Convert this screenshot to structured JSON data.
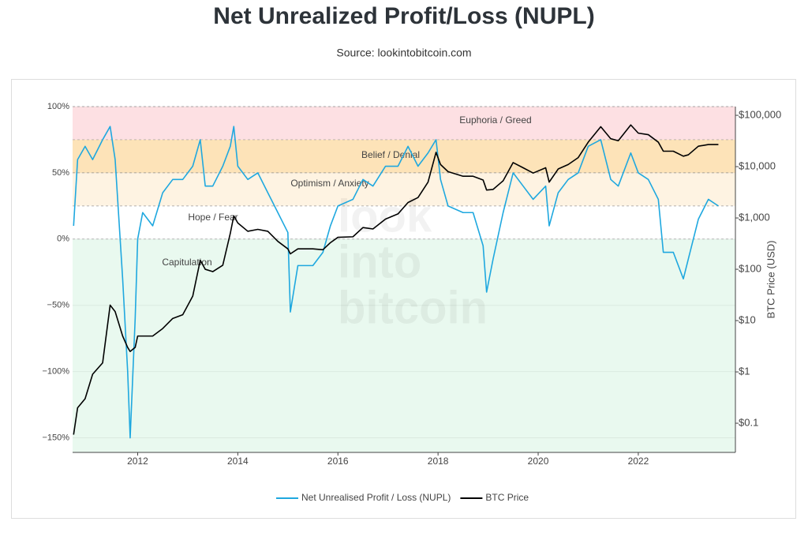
{
  "chart_data": {
    "type": "line",
    "title": "Net Unrealized Profit/Loss (NUPL)",
    "subtitle": "Source: lookintobitcoin.com",
    "y2_label": "BTC Price (USD)",
    "watermark": [
      "look",
      "into",
      "bitcoin"
    ],
    "xlim": [
      2010.7,
      2023.94
    ],
    "xticks": [
      2012,
      2014,
      2016,
      2018,
      2020,
      2022
    ],
    "ylim": [
      -161,
      100
    ],
    "yticks": [
      {
        "value": 100,
        "label": "100%"
      },
      {
        "value": 50,
        "label": "50%"
      },
      {
        "value": 0,
        "label": "0%"
      },
      {
        "value": -50,
        "label": "−50%"
      },
      {
        "value": -100,
        "label": "−100%"
      },
      {
        "value": -150,
        "label": "−150%"
      }
    ],
    "y2lim": [
      0.027,
      148000
    ],
    "y2_log": true,
    "y2ticks": [
      {
        "value": 100000,
        "label": "$100,000"
      },
      {
        "value": 10000,
        "label": "$10,000"
      },
      {
        "value": 1000,
        "label": "$1,000"
      },
      {
        "value": 100,
        "label": "$100"
      },
      {
        "value": 10,
        "label": "$10"
      },
      {
        "value": 1,
        "label": "$1"
      },
      {
        "value": 0.1,
        "label": "$0.1"
      }
    ],
    "grid": true,
    "zones": [
      {
        "name": "Euphoria / Greed",
        "range": [
          75,
          100
        ],
        "color": "#fde0e3"
      },
      {
        "name": "Belief / Denial",
        "range": [
          50,
          75
        ],
        "color": "#fde3b8"
      },
      {
        "name": "Optimism / Anxiety",
        "range": [
          25,
          50
        ],
        "color": "#fef3e2"
      },
      {
        "name": "Hope / Fear",
        "range": [
          0,
          25
        ],
        "color": "#ffffff"
      },
      {
        "name": "Capitulation",
        "range": [
          -161,
          0
        ],
        "color": "#e9f9ef"
      }
    ],
    "x": [
      2010.72,
      2010.8,
      2010.95,
      2011.1,
      2011.3,
      2011.45,
      2011.55,
      2011.7,
      2011.8,
      2011.85,
      2011.95,
      2012.0,
      2012.1,
      2012.3,
      2012.5,
      2012.7,
      2012.9,
      2013.1,
      2013.25,
      2013.35,
      2013.5,
      2013.7,
      2013.85,
      2013.92,
      2014.0,
      2014.2,
      2014.4,
      2014.6,
      2014.8,
      2015.0,
      2015.05,
      2015.2,
      2015.5,
      2015.7,
      2015.85,
      2016.0,
      2016.3,
      2016.5,
      2016.7,
      2016.95,
      2017.2,
      2017.4,
      2017.6,
      2017.8,
      2017.96,
      2018.05,
      2018.2,
      2018.5,
      2018.7,
      2018.9,
      2018.97,
      2019.1,
      2019.3,
      2019.5,
      2019.7,
      2019.9,
      2020.15,
      2020.22,
      2020.4,
      2020.6,
      2020.8,
      2021.0,
      2021.25,
      2021.45,
      2021.6,
      2021.85,
      2022.0,
      2022.2,
      2022.4,
      2022.5,
      2022.7,
      2022.9,
      2023.0,
      2023.2,
      2023.4,
      2023.6
    ],
    "series": [
      {
        "name": "Net Unrealised Profit / Loss (NUPL)",
        "color": "#1fa8df",
        "values": [
          10,
          60,
          70,
          60,
          75,
          85,
          60,
          -30,
          -100,
          -150,
          -60,
          0,
          20,
          10,
          35,
          45,
          45,
          55,
          75,
          40,
          40,
          55,
          70,
          85,
          55,
          45,
          50,
          35,
          20,
          5,
          -55,
          -20,
          -20,
          -10,
          10,
          25,
          30,
          45,
          40,
          55,
          55,
          70,
          55,
          65,
          75,
          45,
          25,
          20,
          20,
          -5,
          -40,
          -15,
          20,
          50,
          40,
          30,
          40,
          10,
          35,
          45,
          50,
          70,
          75,
          45,
          40,
          65,
          50,
          45,
          30,
          -10,
          -10,
          -30,
          -15,
          15,
          30,
          25
        ]
      },
      {
        "name": "BTC Price",
        "color": "#000000",
        "axis": "y2",
        "values": [
          0.06,
          0.2,
          0.3,
          0.9,
          1.5,
          20,
          15,
          5,
          3,
          2.5,
          3,
          5,
          5,
          5,
          7,
          11,
          13,
          30,
          150,
          100,
          90,
          120,
          500,
          1100,
          800,
          550,
          600,
          550,
          350,
          250,
          200,
          250,
          250,
          240,
          330,
          420,
          430,
          650,
          610,
          950,
          1200,
          2000,
          2500,
          5000,
          19000,
          11000,
          8000,
          6500,
          6500,
          5500,
          3500,
          3600,
          5300,
          12000,
          9500,
          7500,
          9500,
          5000,
          9000,
          11000,
          15000,
          30000,
          60000,
          35000,
          32000,
          65000,
          45000,
          42000,
          30000,
          20000,
          20000,
          16000,
          17000,
          25000,
          27000,
          27000
        ]
      }
    ]
  }
}
